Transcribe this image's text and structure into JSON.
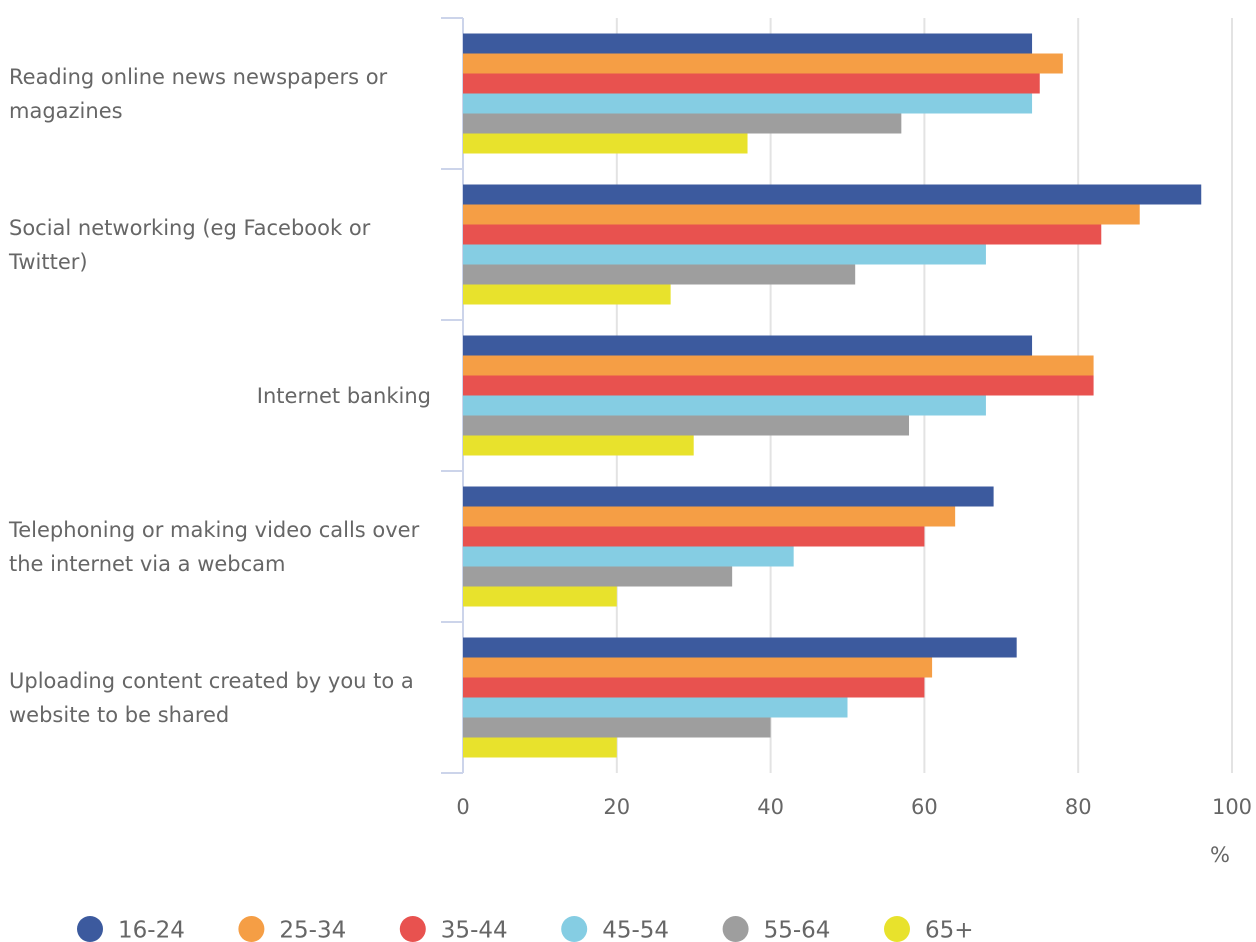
{
  "chart_data": {
    "type": "hbar",
    "categories": [
      "Reading online news newspapers or magazines",
      "Social networking (eg Facebook or Twitter)",
      "Internet banking",
      "Telephoning or making video calls over the internet via a webcam",
      "Uploading content created by you to a website to be shared"
    ],
    "series": [
      {
        "name": "16-24",
        "color": "#3c5a9e",
        "values": [
          74,
          96,
          74,
          69,
          72
        ]
      },
      {
        "name": "25-34",
        "color": "#f59e45",
        "values": [
          78,
          88,
          82,
          64,
          61
        ]
      },
      {
        "name": "35-44",
        "color": "#e8524f",
        "values": [
          75,
          83,
          82,
          60,
          60
        ]
      },
      {
        "name": "45-54",
        "color": "#85cde3",
        "values": [
          74,
          68,
          68,
          43,
          50
        ]
      },
      {
        "name": "55-64",
        "color": "#9e9e9e",
        "values": [
          57,
          51,
          58,
          35,
          40
        ]
      },
      {
        "name": "65+",
        "color": "#e8e22c",
        "values": [
          37,
          27,
          30,
          20,
          20
        ]
      }
    ],
    "x_label": "%",
    "xlim": [
      0,
      100
    ],
    "xticks": [
      0,
      20,
      40,
      60,
      80,
      100
    ],
    "grid": true,
    "legend": "bottom"
  }
}
